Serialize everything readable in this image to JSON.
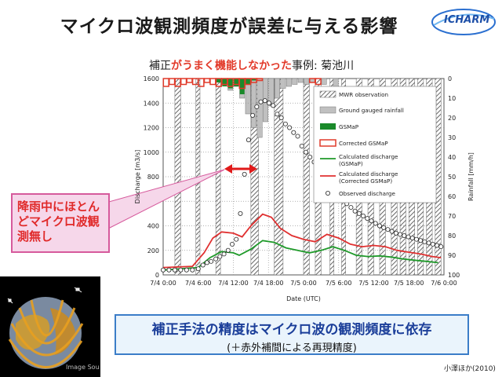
{
  "title": "マイクロ波観測頻度が誤差に与える影響",
  "logo_text": "ICHARM",
  "subtitle": {
    "prefix": "補正",
    "highlight": "がうまく機能しなかった",
    "suffix": "事例:  菊池川"
  },
  "callout": "降雨中にほとんどマイクロ波観測無し",
  "bottom": {
    "main": "補正手法の精度はマイクロ波の観測頻度に依存",
    "sub": "(＋赤外補間による再現精度)"
  },
  "image_credit": "Image Sou",
  "citation": "小澤ほか(2010)",
  "colors": {
    "mwr": "#999999",
    "gauge": "#c0c0c0",
    "gsmap": "#1a8a2a",
    "corrected": "#e03a2a",
    "calc_green": "#1f9a2a",
    "calc_red": "#e03030"
  },
  "chart_data": {
    "type": "line",
    "xlabel": "Date (UTC)",
    "ylabel": "Discharge [m3/s]",
    "y2label": "Rainfall [mm/h]",
    "ylim": [
      0,
      1600
    ],
    "y2lim": [
      0,
      100
    ],
    "y2_inverted": true,
    "xlim": [
      0,
      48
    ],
    "x_ticks": [
      "7/4 0:00",
      "7/4 6:00",
      "7/4 12:00",
      "7/4 18:00",
      "7/5 0:00",
      "7/5 6:00",
      "7/5 12:00",
      "7/5 18:00",
      "7/6 0:00"
    ],
    "y_ticks": [
      0,
      200,
      400,
      600,
      800,
      1000,
      1200,
      1400,
      1600
    ],
    "y2_ticks": [
      0,
      10,
      20,
      30,
      40,
      50,
      60,
      70,
      80,
      90,
      100
    ],
    "mwr_observation": [
      [
        2,
        3
      ],
      [
        5.6,
        6.3
      ],
      [
        9,
        9.8
      ],
      [
        15,
        16.3
      ],
      [
        19,
        20.5
      ],
      [
        24,
        25
      ],
      [
        26,
        27
      ],
      [
        28.5,
        29.2
      ],
      [
        30.5,
        31.2
      ],
      [
        33,
        34
      ],
      [
        35,
        36
      ],
      [
        37,
        38
      ],
      [
        39,
        40
      ],
      [
        40.5,
        41.5
      ],
      [
        42,
        43
      ],
      [
        43.5,
        44.5
      ],
      [
        45,
        46
      ],
      [
        46.5,
        47.5
      ]
    ],
    "ground_gauged_rainfall": [
      [
        10.5,
        2
      ],
      [
        11.5,
        6
      ],
      [
        12.5,
        4
      ],
      [
        13.5,
        10
      ],
      [
        14.5,
        18
      ],
      [
        15.5,
        25
      ],
      [
        16.5,
        30
      ],
      [
        17.5,
        22
      ],
      [
        18.5,
        14
      ],
      [
        19.5,
        10
      ],
      [
        20.5,
        5
      ],
      [
        21.5,
        4
      ],
      [
        22.5,
        3
      ],
      [
        23.5,
        2
      ],
      [
        24.5,
        3
      ],
      [
        25.5,
        2
      ],
      [
        27.5,
        3
      ],
      [
        29.5,
        4
      ]
    ],
    "gsmap": [
      [
        9.5,
        2
      ],
      [
        10.5,
        4
      ],
      [
        11.5,
        5
      ],
      [
        12.5,
        4
      ],
      [
        13.5,
        8
      ],
      [
        14.5,
        3
      ],
      [
        15.5,
        1
      ]
    ],
    "corrected_gsmap": [
      [
        0.5,
        4
      ],
      [
        1.5,
        3
      ],
      [
        2.5,
        4
      ],
      [
        3.5,
        3
      ],
      [
        4.5,
        2
      ],
      [
        5.5,
        3
      ],
      [
        6.5,
        4
      ],
      [
        7.5,
        2
      ],
      [
        8.5,
        3
      ],
      [
        9.5,
        4
      ],
      [
        10.5,
        3
      ],
      [
        11.5,
        4
      ],
      [
        12.5,
        3
      ],
      [
        13.5,
        5
      ],
      [
        14.5,
        3
      ],
      [
        15.5,
        2
      ],
      [
        16.5,
        1
      ],
      [
        25.5,
        2
      ],
      [
        26.5,
        3
      ]
    ],
    "series": [
      {
        "name": "Calculated discharge (GSMaP)",
        "points": [
          [
            0,
            40
          ],
          [
            6,
            60
          ],
          [
            8,
            140
          ],
          [
            10,
            190
          ],
          [
            12,
            180
          ],
          [
            13,
            160
          ],
          [
            15,
            210
          ],
          [
            17,
            280
          ],
          [
            19,
            265
          ],
          [
            21,
            220
          ],
          [
            23,
            200
          ],
          [
            25,
            180
          ],
          [
            27,
            200
          ],
          [
            29,
            230
          ],
          [
            31,
            200
          ],
          [
            33,
            160
          ],
          [
            35,
            150
          ],
          [
            37,
            155
          ],
          [
            39,
            145
          ],
          [
            41,
            130
          ],
          [
            43,
            120
          ],
          [
            45,
            110
          ],
          [
            47,
            100
          ]
        ]
      },
      {
        "name": "Calculated discharge (Corrected GSMaP)",
        "points": [
          [
            0,
            60
          ],
          [
            5,
            70
          ],
          [
            7,
            180
          ],
          [
            8.5,
            300
          ],
          [
            10,
            350
          ],
          [
            12,
            340
          ],
          [
            13.5,
            310
          ],
          [
            15,
            400
          ],
          [
            17,
            495
          ],
          [
            18.5,
            470
          ],
          [
            20,
            380
          ],
          [
            22,
            320
          ],
          [
            24,
            290
          ],
          [
            26,
            270
          ],
          [
            28,
            330
          ],
          [
            30,
            300
          ],
          [
            32,
            250
          ],
          [
            34,
            230
          ],
          [
            36,
            240
          ],
          [
            38,
            230
          ],
          [
            40,
            200
          ],
          [
            42,
            185
          ],
          [
            44,
            170
          ],
          [
            46,
            150
          ],
          [
            47.5,
            140
          ]
        ]
      },
      {
        "name": "Observed discharge",
        "points": [
          [
            0,
            40
          ],
          [
            1,
            40
          ],
          [
            2,
            40
          ],
          [
            3,
            40
          ],
          [
            4,
            40
          ],
          [
            5,
            40
          ],
          [
            6,
            50
          ],
          [
            6.8,
            80
          ],
          [
            7.5,
            100
          ],
          [
            8.2,
            110
          ],
          [
            9,
            130
          ],
          [
            9.7,
            150
          ],
          [
            10.4,
            170
          ],
          [
            11.1,
            200
          ],
          [
            11.8,
            250
          ],
          [
            12.5,
            290
          ],
          [
            13.2,
            500
          ],
          [
            13.9,
            820
          ],
          [
            14.6,
            1100
          ],
          [
            15.3,
            1300
          ],
          [
            16,
            1370
          ],
          [
            16.7,
            1410
          ],
          [
            17.4,
            1420
          ],
          [
            18.1,
            1400
          ],
          [
            18.8,
            1380
          ],
          [
            19.5,
            1310
          ],
          [
            20.2,
            1280
          ],
          [
            20.9,
            1230
          ],
          [
            21.6,
            1200
          ],
          [
            22.3,
            1160
          ],
          [
            23,
            1130
          ],
          [
            23.7,
            1050
          ],
          [
            24.4,
            1000
          ],
          [
            25.1,
            960
          ],
          [
            25.8,
            920
          ],
          [
            26.5,
            860
          ],
          [
            27.2,
            800
          ],
          [
            27.9,
            760
          ],
          [
            28.6,
            720
          ],
          [
            29.3,
            680
          ],
          [
            30,
            640
          ],
          [
            30.7,
            610
          ],
          [
            31.4,
            580
          ],
          [
            32.1,
            550
          ],
          [
            32.8,
            520
          ],
          [
            33.5,
            500
          ],
          [
            34.2,
            480
          ],
          [
            34.9,
            460
          ],
          [
            35.6,
            440
          ],
          [
            36.3,
            420
          ],
          [
            37,
            400
          ],
          [
            37.7,
            385
          ],
          [
            38.4,
            370
          ],
          [
            39.1,
            355
          ],
          [
            39.8,
            340
          ],
          [
            40.5,
            330
          ],
          [
            41.2,
            320
          ],
          [
            41.9,
            310
          ],
          [
            42.6,
            300
          ],
          [
            43.3,
            290
          ],
          [
            44,
            280
          ],
          [
            44.7,
            270
          ],
          [
            45.4,
            260
          ],
          [
            46.1,
            250
          ],
          [
            46.8,
            240
          ],
          [
            47.5,
            230
          ]
        ]
      }
    ],
    "legend": [
      "MWR observation",
      "Ground gauged rainfall",
      "GSMaP",
      "Corrected GSMaP",
      "Calculated discharge (GSMaP)",
      "Calculated discharge (Corrected GSMaP)",
      "Observed discharge"
    ]
  }
}
